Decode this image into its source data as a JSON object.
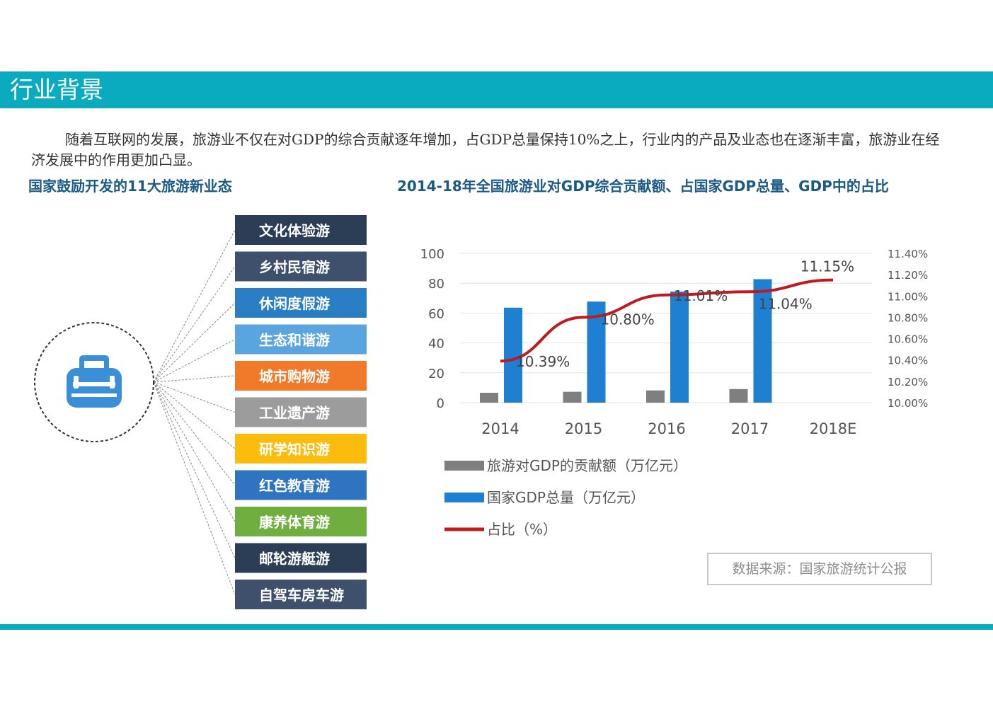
{
  "header": {
    "title": "行业背景"
  },
  "intro_text": "随着互联网的发展，旅游业不仅在对GDP的综合贡献逐年增加，占GDP总量保持10%之上，行业内的产品及业态也在逐渐丰富，旅游业在经济发展中的作用更加凸显。",
  "left_panel": {
    "heading": "国家鼓励开发的11大旅游新业态",
    "center_icon": "briefcase-icon",
    "items": [
      {
        "label": "文化体验游",
        "color": "#2b3e55"
      },
      {
        "label": "乡村民宿游",
        "color": "#3e506b"
      },
      {
        "label": "休闲度假游",
        "color": "#2a7fc4"
      },
      {
        "label": "生态和谐游",
        "color": "#5aa4e0"
      },
      {
        "label": "城市购物游",
        "color": "#f07a2a"
      },
      {
        "label": "工业遗产游",
        "color": "#9c9c9c"
      },
      {
        "label": "研学知识游",
        "color": "#fbbc0e"
      },
      {
        "label": "红色教育游",
        "color": "#2f74c0"
      },
      {
        "label": "康养体育游",
        "color": "#6fae3f"
      },
      {
        "label": "邮轮游艇游",
        "color": "#2b3e55"
      },
      {
        "label": "自驾车房车游",
        "color": "#3e506b"
      }
    ]
  },
  "right_panel": {
    "heading": "2014-18年全国旅游业对GDP综合贡献额、占国家GDP总量、GDP中的占比"
  },
  "source": "数据来源：国家旅游统计公报",
  "chart_data": {
    "type": "bar",
    "categories": [
      "2014",
      "2015",
      "2016",
      "2017",
      "2018E"
    ],
    "series": [
      {
        "name": "旅游对GDP的贡献额（万亿元）",
        "type": "bar",
        "axis": "left",
        "color": "#7f7f7f",
        "values": [
          6.6,
          7.3,
          8.2,
          9.1,
          null
        ]
      },
      {
        "name": "国家GDP总量（万亿元）",
        "type": "bar",
        "axis": "left",
        "color": "#1f7fd1",
        "values": [
          63.6,
          67.7,
          74.4,
          82.7,
          null
        ]
      },
      {
        "name": "占比（%）",
        "type": "line",
        "axis": "right",
        "color": "#c0191f",
        "values": [
          10.39,
          10.8,
          11.01,
          11.04,
          11.15
        ]
      }
    ],
    "data_labels": [
      "10.39%",
      "10.80%",
      "11.01%",
      "11.04%",
      "11.15%"
    ],
    "y_left": {
      "ticks": [
        0,
        20,
        40,
        60,
        80,
        100
      ],
      "lim": [
        0,
        100
      ]
    },
    "y_right": {
      "ticks": [
        "10.00%",
        "10.20%",
        "10.40%",
        "10.60%",
        "10.80%",
        "11.00%",
        "11.20%",
        "11.40%"
      ],
      "lim": [
        10.0,
        11.4
      ]
    },
    "grid": true,
    "legend_position": "bottom-left"
  }
}
